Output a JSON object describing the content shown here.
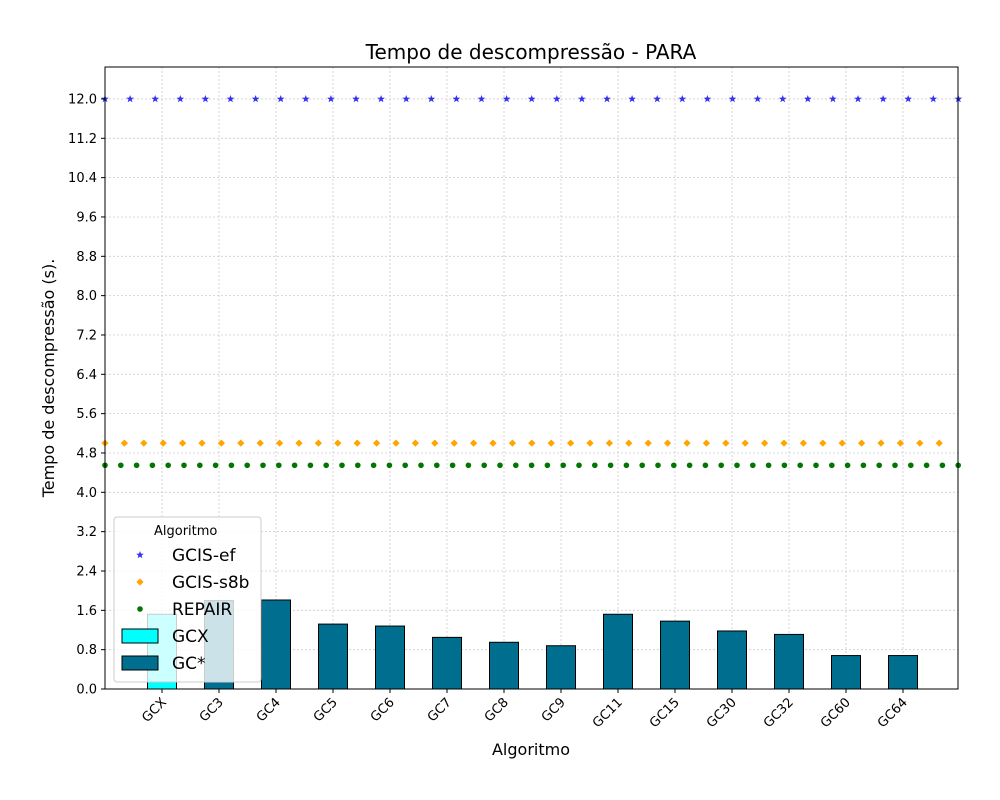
{
  "chart_data": {
    "type": "bar",
    "title": "Tempo de descompressão -  PARA",
    "xlabel": "Algoritmo",
    "ylabel": "Tempo de descompressão (s).",
    "ylim": [
      0,
      12.65
    ],
    "yticks": [
      "0.0",
      "0.8",
      "1.6",
      "2.4",
      "3.2",
      "4.0",
      "4.8",
      "5.6",
      "6.4",
      "7.2",
      "8.0",
      "8.8",
      "9.6",
      "10.4",
      "11.2",
      "12.0"
    ],
    "grid": true,
    "categories": [
      "GCX",
      "GC3",
      "GC4",
      "GC5",
      "GC6",
      "GC7",
      "GC8",
      "GC9",
      "GC11",
      "GC15",
      "GC30",
      "GC32",
      "GC60",
      "GC64"
    ],
    "bar_series": [
      {
        "name": "GCX",
        "color": "#00ffff",
        "values": [
          1.52,
          null,
          null,
          null,
          null,
          null,
          null,
          null,
          null,
          null,
          null,
          null,
          null,
          null
        ]
      },
      {
        "name": "GC*",
        "color": "#006e8f",
        "values": [
          null,
          1.8,
          1.81,
          1.32,
          1.28,
          1.05,
          0.95,
          0.88,
          1.52,
          1.38,
          1.18,
          1.11,
          0.68,
          0.68
        ]
      }
    ],
    "line_series": [
      {
        "name": "GCIS-ef",
        "value": 12.0,
        "color": "#3333ee",
        "marker": "star"
      },
      {
        "name": "GCIS-s8b",
        "value": 5.0,
        "color": "#ffa500",
        "marker": "diamond"
      },
      {
        "name": "REPAIR",
        "value": 4.55,
        "color": "#007700",
        "marker": "circle"
      }
    ],
    "legend": {
      "title": "Algoritmo",
      "position": "lower-left"
    }
  }
}
